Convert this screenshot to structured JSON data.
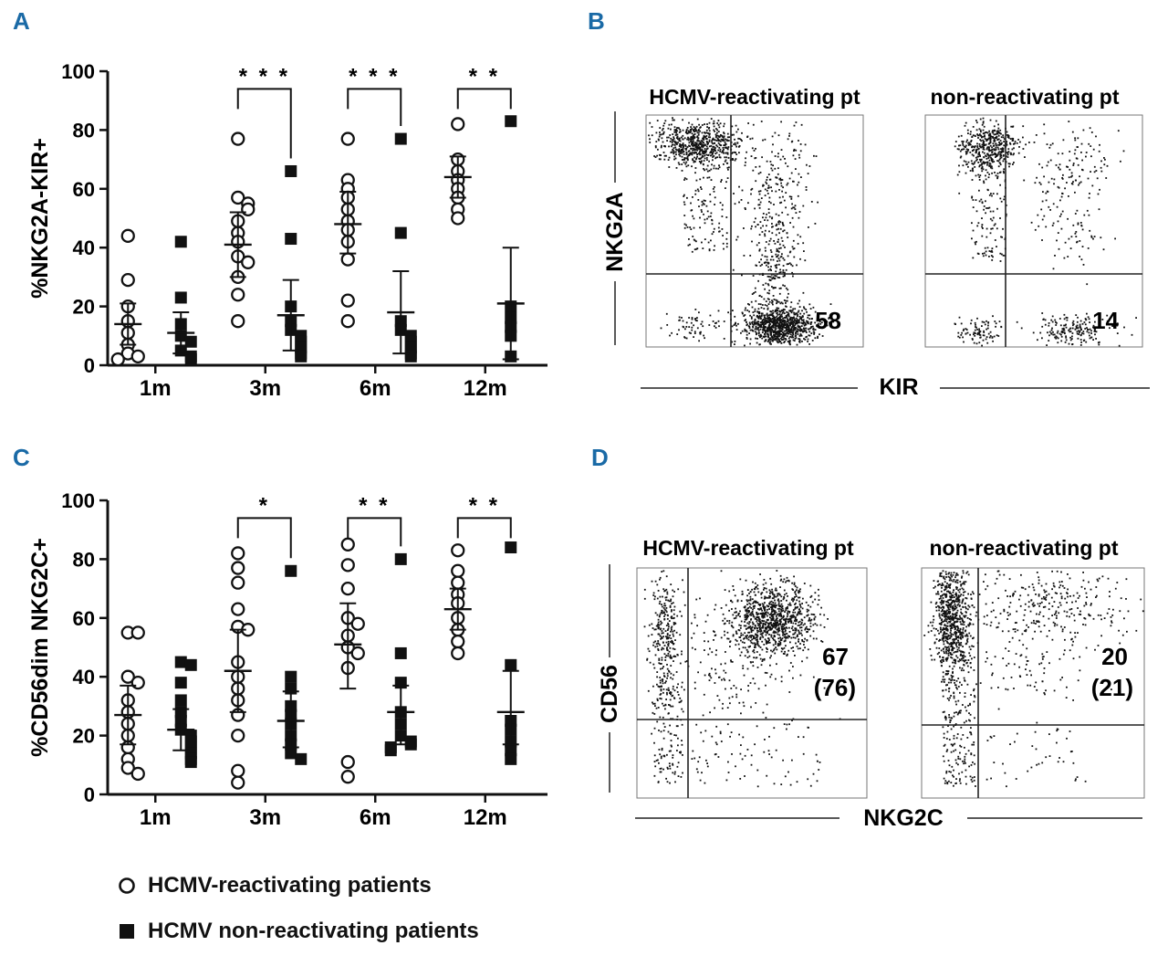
{
  "panels": {
    "A": {
      "letter": "A"
    },
    "B": {
      "letter": "B",
      "left_title": "HCMV-reactivating pt",
      "right_title": "non-reactivating pt",
      "y_label": "NKG2A",
      "x_label": "KIR",
      "left_value": "58",
      "right_value": "14"
    },
    "C": {
      "letter": "C"
    },
    "D": {
      "letter": "D",
      "left_title": "HCMV-reactivating pt",
      "right_title": "non-reactivating pt",
      "y_label": "CD56",
      "x_label": "NKG2C",
      "left_value": "67",
      "left_value_paren": "(76)",
      "right_value": "20",
      "right_value_paren": "(21)"
    }
  },
  "legend": {
    "reactivating": "HCMV-reactivating patients",
    "non_reactivating": "HCMV non-reactivating patients"
  },
  "chart_data": [
    {
      "id": "A",
      "type": "scatter",
      "title": "",
      "ylabel": "%NKG2A-KIR+",
      "xlabel": "",
      "ylim": [
        0,
        100
      ],
      "yticks": [
        0,
        20,
        40,
        60,
        80,
        100
      ],
      "categories": [
        "1m",
        "3m",
        "6m",
        "12m"
      ],
      "significance": [
        "",
        "* * *",
        "* * *",
        "* *"
      ],
      "series": [
        {
          "name": "HCMV-reactivating patients",
          "marker": "open-circle",
          "points": [
            [
              44,
              29,
              20,
              15,
              11,
              7,
              4,
              3,
              2
            ],
            [
              77,
              57,
              55,
              53,
              49,
              45,
              42,
              37,
              35,
              30,
              24,
              15
            ],
            [
              77,
              63,
              60,
              57,
              53,
              49,
              46,
              42,
              36,
              22,
              15
            ],
            [
              82,
              70,
              66,
              63,
              60,
              57,
              53,
              50
            ]
          ],
          "mean": [
            14,
            41,
            48,
            64
          ],
          "err_low": [
            7,
            30,
            38,
            57
          ],
          "err_high": [
            21,
            52,
            59,
            71
          ]
        },
        {
          "name": "HCMV non-reactivating patients",
          "marker": "filled-square",
          "points": [
            [
              42,
              23,
              14,
              10,
              8,
              5,
              3,
              2
            ],
            [
              66,
              43,
              20,
              15,
              12,
              10,
              8,
              6,
              4,
              3
            ],
            [
              77,
              45,
              15,
              12,
              10,
              8,
              6,
              4,
              3
            ],
            [
              83,
              20,
              16,
              13,
              10,
              3
            ]
          ],
          "mean": [
            11,
            17,
            18,
            21
          ],
          "err_low": [
            4,
            5,
            4,
            2
          ],
          "err_high": [
            18,
            29,
            32,
            40
          ]
        }
      ]
    },
    {
      "id": "C",
      "type": "scatter",
      "title": "",
      "ylabel": "%CD56dim NKG2C+",
      "xlabel": "",
      "ylim": [
        0,
        100
      ],
      "yticks": [
        0,
        20,
        40,
        60,
        80,
        100
      ],
      "categories": [
        "1m",
        "3m",
        "6m",
        "12m"
      ],
      "significance": [
        "",
        "*",
        "* *",
        "* *"
      ],
      "series": [
        {
          "name": "HCMV-reactivating patients",
          "marker": "open-circle",
          "points": [
            [
              55,
              55,
              40,
              38,
              32,
              28,
              24,
              20,
              16,
              12,
              9,
              7
            ],
            [
              82,
              77,
              72,
              63,
              57,
              56,
              45,
              40,
              36,
              32,
              27,
              20,
              8,
              4
            ],
            [
              85,
              78,
              70,
              60,
              58,
              54,
              50,
              48,
              43,
              11,
              6
            ],
            [
              83,
              76,
              72,
              68,
              65,
              60,
              56,
              52,
              48
            ]
          ],
          "mean": [
            27,
            42,
            51,
            63
          ],
          "err_low": [
            17,
            28,
            36,
            56
          ],
          "err_high": [
            37,
            56,
            65,
            70
          ]
        },
        {
          "name": "HCMV non-reactivating patients",
          "marker": "filled-square",
          "points": [
            [
              45,
              44,
              38,
              32,
              28,
              25,
              22,
              20,
              18,
              16,
              14,
              12,
              11
            ],
            [
              76,
              40,
              36,
              30,
              27,
              24,
              20,
              17,
              14,
              12
            ],
            [
              80,
              48,
              38,
              28,
              24,
              20,
              18,
              17,
              16,
              15
            ],
            [
              84,
              44,
              25,
              22,
              18,
              15,
              12
            ]
          ],
          "mean": [
            22,
            25,
            28,
            28
          ],
          "err_low": [
            15,
            16,
            17,
            17
          ],
          "err_high": [
            29,
            35,
            37,
            42
          ]
        }
      ]
    }
  ]
}
